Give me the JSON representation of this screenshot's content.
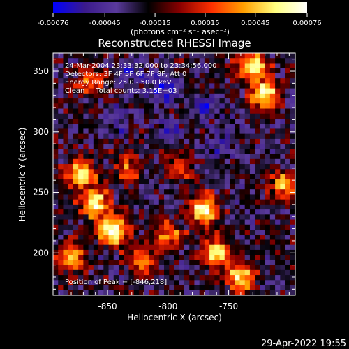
{
  "chart_data": {
    "type": "heatmap",
    "title": "Reconstructed RHESSI Image",
    "xlabel": "Heliocentric X (arcsec)",
    "ylabel": "Heliocentric Y (arcsec)",
    "xlim": [
      -895,
      -695
    ],
    "ylim": [
      165,
      365
    ],
    "xticks": [
      -850,
      -800,
      -750
    ],
    "xtick_labels": [
      "-850",
      "-800",
      "-750"
    ],
    "yticks": [
      200,
      250,
      300,
      350
    ],
    "ytick_labels": [
      "200",
      "250",
      "300",
      "350"
    ],
    "colorbar": {
      "ticks": [
        -0.00076,
        -0.00045,
        -0.00015,
        0.00015,
        0.00045,
        0.00076
      ],
      "tick_labels": [
        "-0.00076",
        "-0.00045",
        "-0.00015",
        "0.00015",
        "0.00045",
        "0.00076"
      ],
      "unit_label": "(photons cm⁻² s⁻¹ asec⁻²)",
      "range": [
        -0.00076,
        0.00076
      ],
      "colors": [
        "#0000ff",
        "#3a1a8c",
        "#5a3a9c",
        "#000000",
        "#8a0000",
        "#ff3000",
        "#ffa000",
        "#ffff80",
        "#ffffff"
      ]
    },
    "annotations": [
      "24-Mar-2004 23:33:32.000 to 23:34:56.000",
      "Detectors: 3F 4F 5F 6F 7F 8F, Att 0",
      "Energy Range: 25.0 - 50.0 keV",
      "Clean     Total counts: 3.15E+03"
    ],
    "peak_label": "Position of Peak = [-846,218]",
    "peak_position": [
      -846,
      218
    ],
    "hot_regions": [
      {
        "x": -860,
        "y": 240,
        "level": 0.9
      },
      {
        "x": -872,
        "y": 265,
        "level": 0.8
      },
      {
        "x": -846,
        "y": 218,
        "level": 1.0
      },
      {
        "x": -880,
        "y": 195,
        "level": 0.7
      },
      {
        "x": -770,
        "y": 235,
        "level": 0.95
      },
      {
        "x": -760,
        "y": 200,
        "level": 0.85
      },
      {
        "x": -740,
        "y": 180,
        "level": 0.8
      },
      {
        "x": -720,
        "y": 330,
        "level": 0.9
      },
      {
        "x": -730,
        "y": 355,
        "level": 0.8
      },
      {
        "x": -705,
        "y": 255,
        "level": 0.7
      },
      {
        "x": -800,
        "y": 215,
        "level": 0.6
      },
      {
        "x": -820,
        "y": 195,
        "level": 0.6
      },
      {
        "x": -865,
        "y": 340,
        "level": 0.55
      },
      {
        "x": -835,
        "y": 270,
        "level": 0.5
      },
      {
        "x": -790,
        "y": 270,
        "level": 0.45
      }
    ],
    "cold_regions": [
      {
        "x": -805,
        "y": 335,
        "level": 0.8
      },
      {
        "x": -770,
        "y": 320,
        "level": 0.7
      },
      {
        "x": -840,
        "y": 310,
        "level": 0.6
      },
      {
        "x": -830,
        "y": 350,
        "level": 0.5
      },
      {
        "x": -755,
        "y": 290,
        "level": 0.55
      },
      {
        "x": -800,
        "y": 300,
        "level": 0.6
      }
    ]
  },
  "footer": {
    "timestamp": "29-Apr-2022 19:55"
  }
}
